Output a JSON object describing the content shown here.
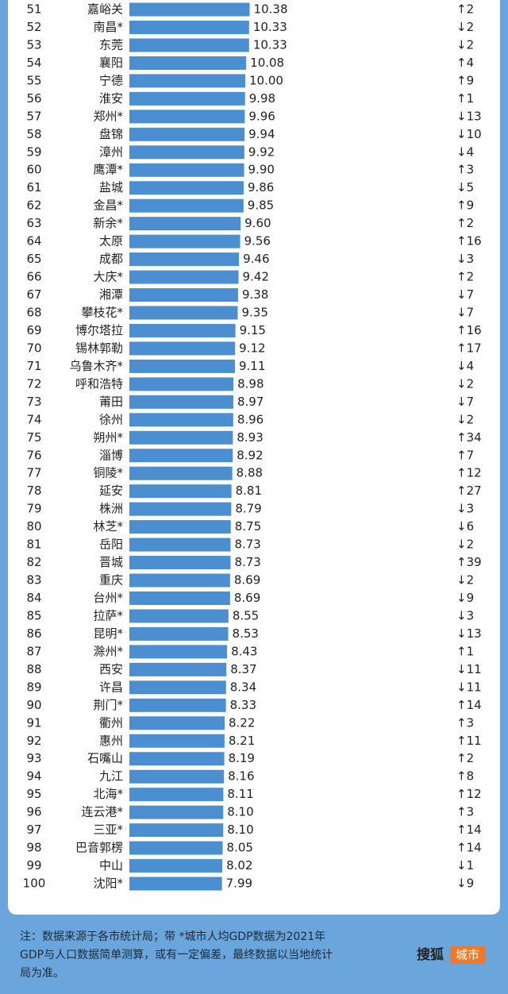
{
  "chart_data": {
    "type": "bar",
    "orientation": "horizontal",
    "color": "#4b8fd1",
    "xlim": [
      0,
      20
    ],
    "ranks": [
      51,
      52,
      53,
      54,
      55,
      56,
      57,
      58,
      59,
      60,
      61,
      62,
      63,
      64,
      65,
      66,
      67,
      68,
      69,
      70,
      71,
      72,
      73,
      74,
      75,
      76,
      77,
      78,
      79,
      80,
      81,
      82,
      83,
      84,
      85,
      86,
      87,
      88,
      89,
      90,
      91,
      92,
      93,
      94,
      95,
      96,
      97,
      98,
      99,
      100
    ],
    "categories": [
      "嘉峪关",
      "南昌*",
      "东莞",
      "襄阳",
      "宁德",
      "淮安",
      "郑州*",
      "盘锦",
      "漳州",
      "鹰潭*",
      "盐城",
      "金昌*",
      "新余*",
      "太原",
      "成都",
      "大庆*",
      "湘潭",
      "攀枝花*",
      "博尔塔拉",
      "锡林郭勒",
      "乌鲁木齐*",
      "呼和浩特",
      "莆田",
      "徐州",
      "朔州*",
      "淄博",
      "铜陵*",
      "延安",
      "株洲",
      "林芝*",
      "岳阳",
      "晋城",
      "重庆",
      "台州*",
      "拉萨*",
      "昆明*",
      "滁州*",
      "西安",
      "许昌",
      "荆门*",
      "衢州",
      "惠州",
      "石嘴山",
      "九江",
      "北海*",
      "连云港*",
      "三亚*",
      "巴音郭楞",
      "中山",
      "沈阳*"
    ],
    "values": [
      10.38,
      10.33,
      10.33,
      10.08,
      10.0,
      9.98,
      9.96,
      9.94,
      9.92,
      9.9,
      9.86,
      9.85,
      9.6,
      9.56,
      9.46,
      9.42,
      9.38,
      9.35,
      9.15,
      9.12,
      9.11,
      8.98,
      8.97,
      8.96,
      8.93,
      8.92,
      8.88,
      8.81,
      8.79,
      8.75,
      8.73,
      8.73,
      8.69,
      8.69,
      8.55,
      8.53,
      8.43,
      8.37,
      8.34,
      8.33,
      8.22,
      8.21,
      8.19,
      8.16,
      8.11,
      8.1,
      8.1,
      8.05,
      8.02,
      7.99
    ],
    "value_labels": [
      "10.38",
      "10.33",
      "10.33",
      "10.08",
      "10.00",
      "9.98",
      "9.96",
      "9.94",
      "9.92",
      "9.90",
      "9.86",
      "9.85",
      "9.60",
      "9.56",
      "9.46",
      "9.42",
      "9.38",
      "9.35",
      "9.15",
      "9.12",
      "9.11",
      "8.98",
      "8.97",
      "8.96",
      "8.93",
      "8.92",
      "8.88",
      "8.81",
      "8.79",
      "8.75",
      "8.73",
      "8.73",
      "8.69",
      "8.69",
      "8.55",
      "8.53",
      "8.43",
      "8.37",
      "8.34",
      "8.33",
      "8.22",
      "8.21",
      "8.19",
      "8.16",
      "8.11",
      "8.10",
      "8.10",
      "8.05",
      "8.02",
      "7.99"
    ],
    "changes": [
      "↑2",
      "↓2",
      "↓2",
      "↑4",
      "↑9",
      "↑1",
      "↓13",
      "↓10",
      "↓4",
      "↑3",
      "↓5",
      "↑9",
      "↑2",
      "↑16",
      "↓3",
      "↑2",
      "↓7",
      "↓7",
      "↑16",
      "↑17",
      "↓4",
      "↓2",
      "↓7",
      "↓2",
      "↑34",
      "↑7",
      "↑12",
      "↑27",
      "↓3",
      "↓6",
      "↓2",
      "↑39",
      "↓2",
      "↓9",
      "↓3",
      "↓13",
      "↑1",
      "↓11",
      "↓11",
      "↑14",
      "↑3",
      "↑11",
      "↑2",
      "↑8",
      "↑12",
      "↑3",
      "↑14",
      "↑14",
      "↓1",
      "↓9"
    ],
    "note": [
      "注：数据来源于各市统计局；带 *城市人均GDP数据为2021年",
      "GDP与人口数据简单测算，或有一定偏差，最终数据以当地统计",
      "局为准。"
    ],
    "logo": {
      "brand": "搜狐",
      "channel": "城市"
    }
  }
}
